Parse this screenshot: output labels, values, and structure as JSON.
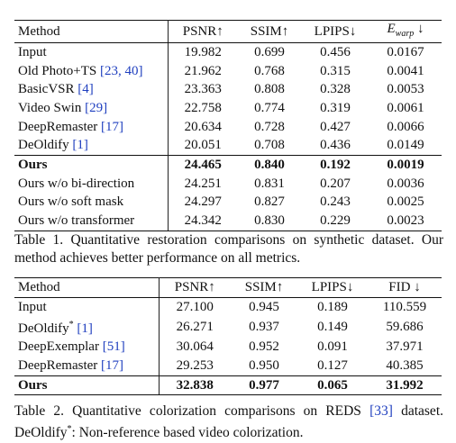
{
  "table1": {
    "header": [
      "Method",
      "PSNR↑",
      "SSIM↑",
      "LPIPS↓",
      {
        "main": "E",
        "sub": "warp",
        "arrow": "↓"
      }
    ],
    "rows": [
      {
        "method": "Input",
        "values": [
          "19.982",
          "0.699",
          "0.456",
          "0.0167"
        ]
      },
      {
        "method": "Old Photo+TS",
        "cite": "[23, 40]",
        "values": [
          "21.962",
          "0.768",
          "0.315",
          "0.0041"
        ]
      },
      {
        "method": "BasicVSR",
        "cite": "[4]",
        "values": [
          "23.363",
          "0.808",
          "0.328",
          "0.0053"
        ]
      },
      {
        "method": "Video Swin",
        "cite": "[29]",
        "values": [
          "22.758",
          "0.774",
          "0.319",
          "0.0061"
        ]
      },
      {
        "method": "DeepRemaster",
        "cite": "[17]",
        "values": [
          "20.634",
          "0.728",
          "0.427",
          "0.0066"
        ]
      },
      {
        "method": "DeOldify",
        "cite": "[1]",
        "values": [
          "20.051",
          "0.708",
          "0.436",
          "0.0149"
        ]
      }
    ],
    "ours_rows": [
      {
        "method": "Ours",
        "values": [
          "24.465",
          "0.840",
          "0.192",
          "0.0019"
        ]
      },
      {
        "method": "Ours w/o bi-direction",
        "values": [
          "24.251",
          "0.831",
          "0.207",
          "0.0036"
        ]
      },
      {
        "method": "Ours w/o soft mask",
        "values": [
          "24.297",
          "0.827",
          "0.243",
          "0.0025"
        ]
      },
      {
        "method": "Ours w/o transformer",
        "values": [
          "24.342",
          "0.830",
          "0.229",
          "0.0023"
        ]
      }
    ],
    "caption": {
      "text1": "Table 1. Quantitative restoration comparisons on synthetic dataset. Our method achieves better performance on all metrics."
    }
  },
  "table2": {
    "header": [
      "Method",
      "PSNR↑",
      "SSIM↑",
      "LPIPS↓",
      "FID ↓"
    ],
    "rows": [
      {
        "method": "Input",
        "values": [
          "27.100",
          "0.945",
          "0.189",
          "110.559"
        ]
      },
      {
        "method": "DeOldify",
        "sup": "*",
        "cite": "[1]",
        "values": [
          "26.271",
          "0.937",
          "0.149",
          "59.686"
        ]
      },
      {
        "method": "DeepExemplar",
        "cite": "[51]",
        "values": [
          "30.064",
          "0.952",
          "0.091",
          "37.971"
        ]
      },
      {
        "method": "DeepRemaster",
        "cite": "[17]",
        "values": [
          "29.253",
          "0.950",
          "0.127",
          "40.385"
        ]
      }
    ],
    "ours_rows": [
      {
        "method": "Ours",
        "values": [
          "32.838",
          "0.977",
          "0.065",
          "31.992"
        ]
      }
    ],
    "caption": {
      "text1": "Table 2.  Quantitative colorization comparisons on REDS ",
      "cite": "[33]",
      "text2": " dataset. DeOldify",
      "sup": "*",
      "text3": ": Non-reference based video colorization."
    }
  }
}
